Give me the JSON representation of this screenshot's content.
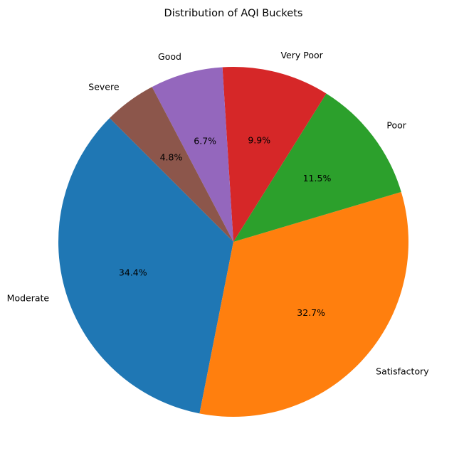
{
  "chart_data": {
    "type": "pie",
    "title": "Distribution of AQI Buckets",
    "start_angle_deg": 135,
    "direction": "counterclockwise",
    "legend": "none",
    "slices": [
      {
        "label": "Moderate",
        "value": 34.4,
        "pct_label": "34.4%",
        "color": "#1f77b4"
      },
      {
        "label": "Satisfactory",
        "value": 32.7,
        "pct_label": "32.7%",
        "color": "#ff7f0e"
      },
      {
        "label": "Poor",
        "value": 11.5,
        "pct_label": "11.5%",
        "color": "#2ca02c"
      },
      {
        "label": "Very Poor",
        "value": 9.9,
        "pct_label": "9.9%",
        "color": "#d62728"
      },
      {
        "label": "Good",
        "value": 6.7,
        "pct_label": "6.7%",
        "color": "#9467bd"
      },
      {
        "label": "Severe",
        "value": 4.8,
        "pct_label": "4.8%",
        "color": "#8c564b"
      }
    ]
  }
}
